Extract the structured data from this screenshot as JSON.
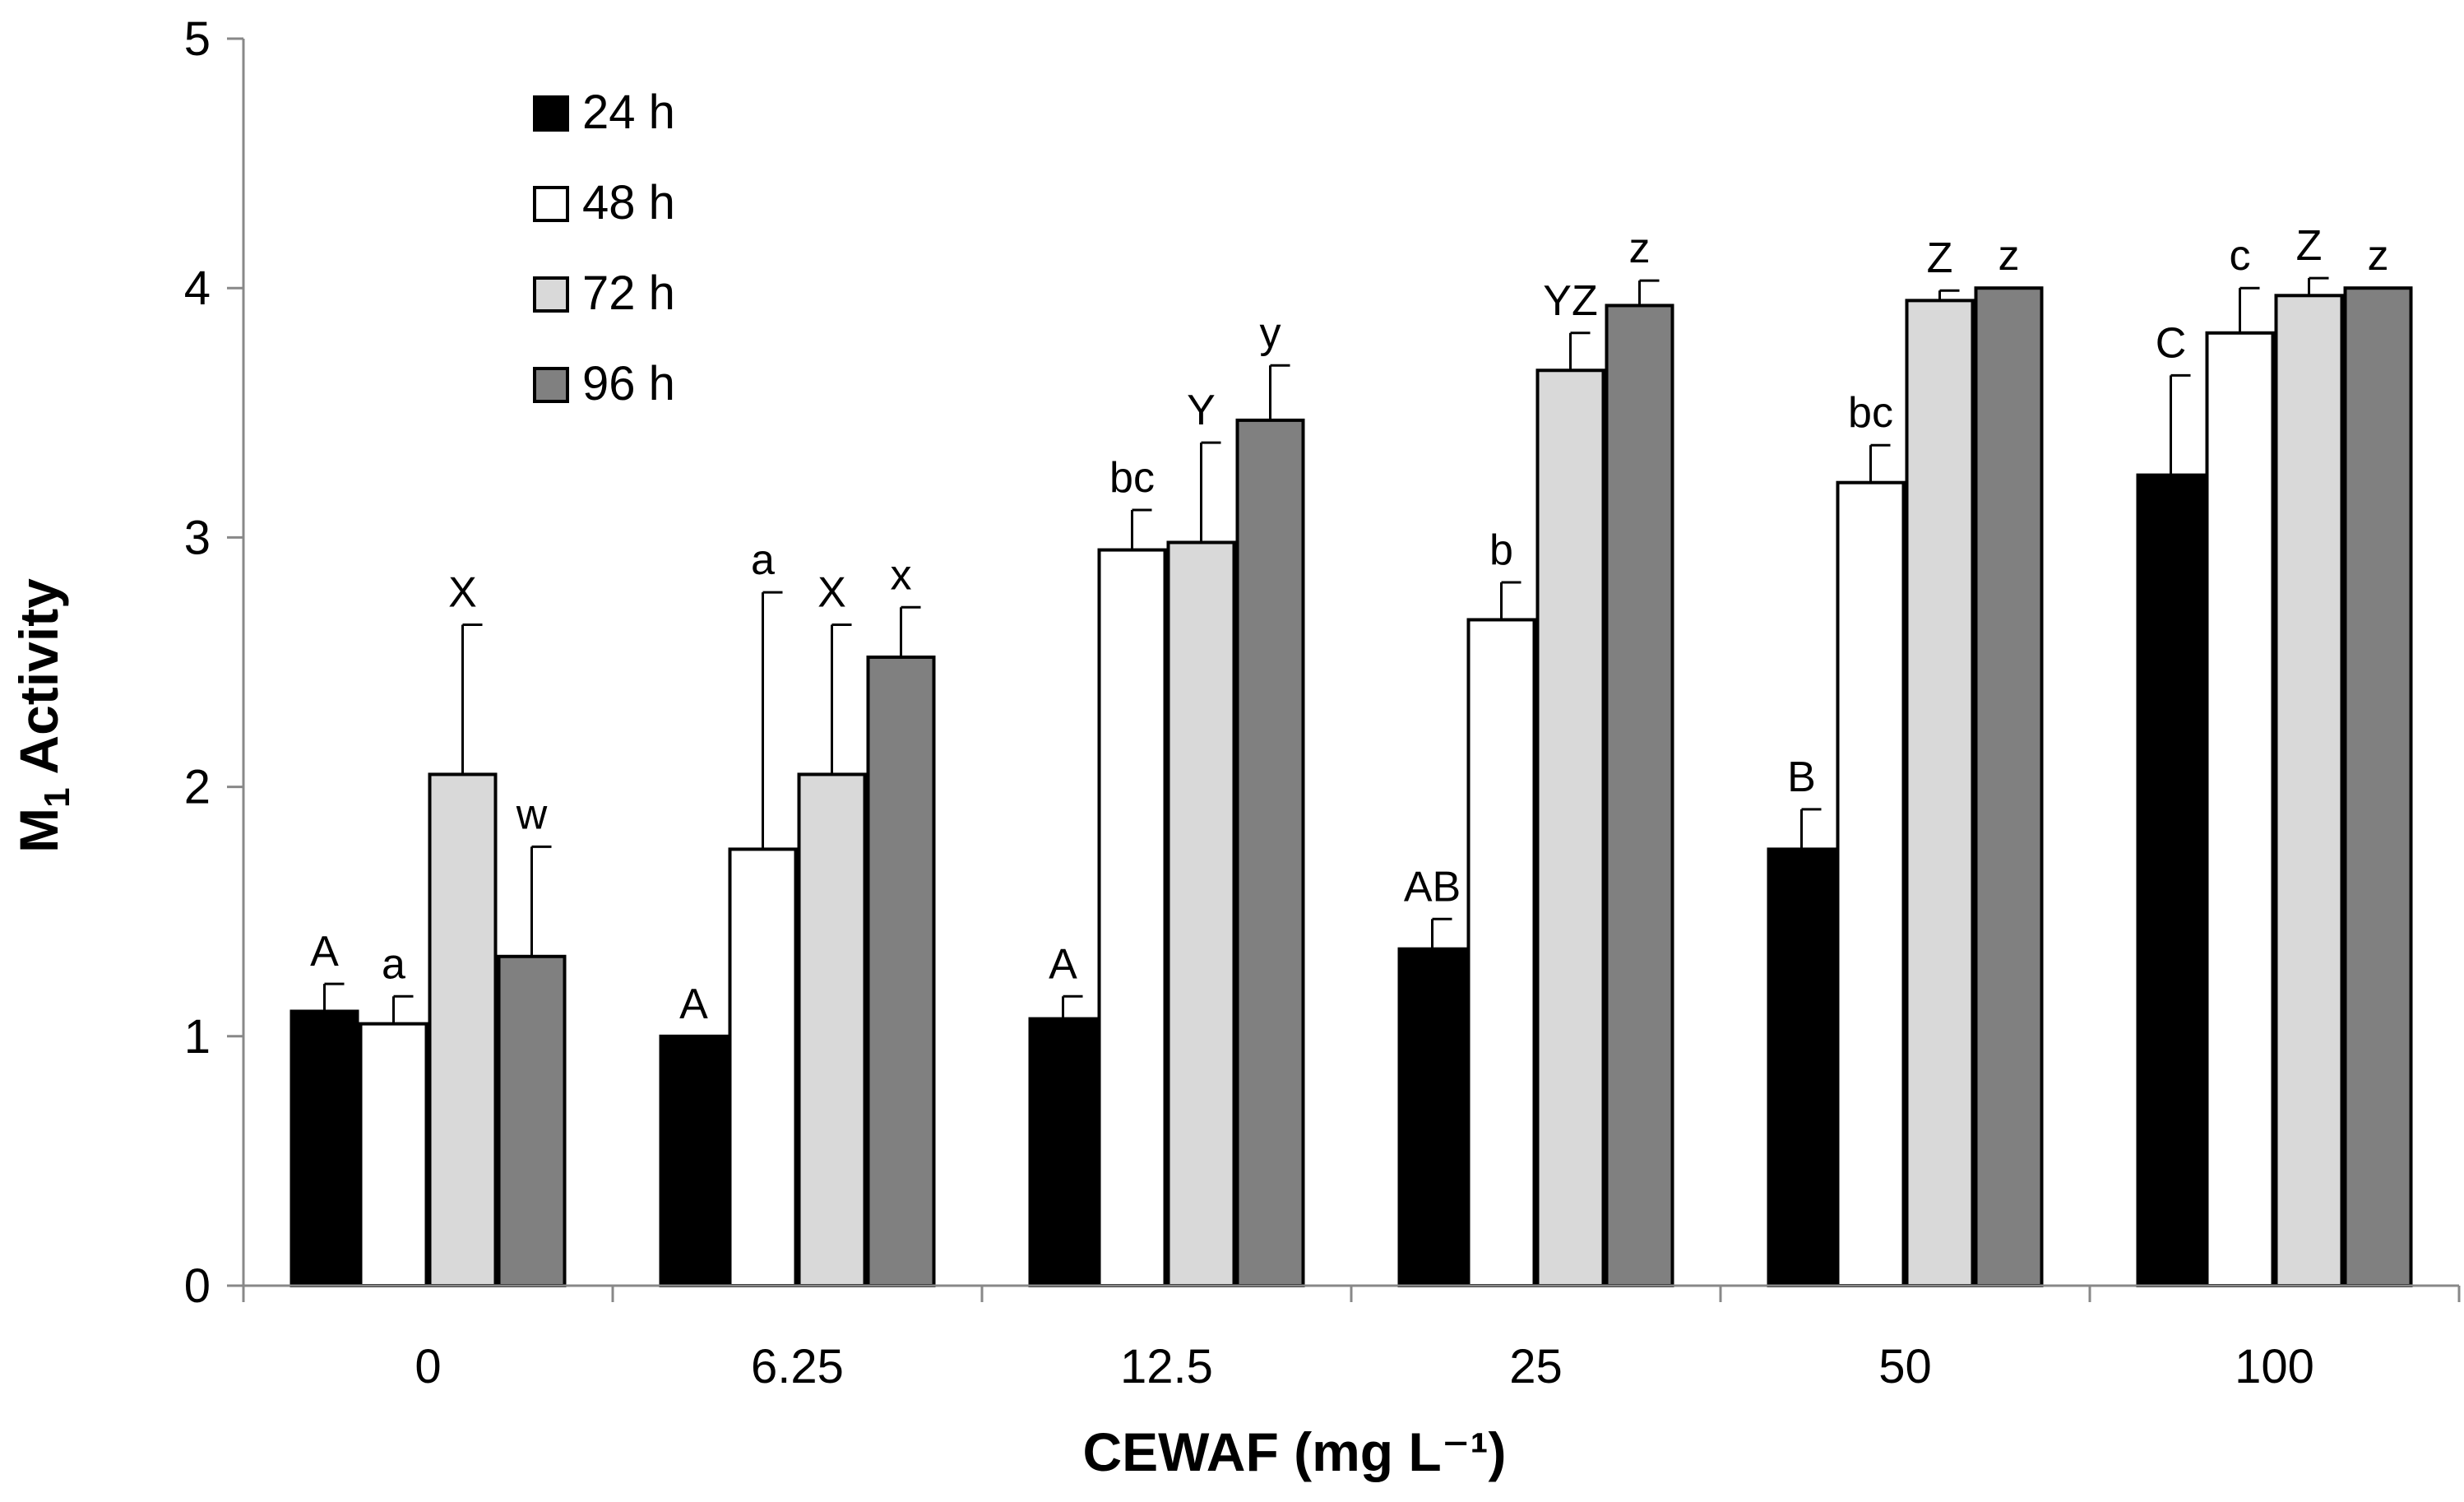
{
  "chart_data": {
    "type": "bar",
    "title": "",
    "xlabel": "CEWAF (mg L⁻¹)",
    "ylabel_main": "M",
    "ylabel_sub": "1",
    "ylabel_rest": " Activity",
    "ylim": [
      0,
      5
    ],
    "yticks": [
      0,
      1,
      2,
      3,
      4,
      5
    ],
    "categories": [
      "0",
      "6.25",
      "12.5",
      "25",
      "50",
      "100"
    ],
    "legend_position": "top-left",
    "series": [
      {
        "name": "24 h",
        "color": "#000000",
        "values": [
          1.1,
          1.0,
          1.07,
          1.35,
          1.75,
          3.25
        ],
        "errors": [
          0.11,
          0.0,
          0.09,
          0.12,
          0.16,
          0.4
        ],
        "labels": [
          "A",
          "A",
          "A",
          "AB",
          "B",
          "C"
        ]
      },
      {
        "name": "48 h",
        "color": "#ffffff",
        "values": [
          1.05,
          1.75,
          2.95,
          2.67,
          3.22,
          3.82
        ],
        "errors": [
          0.11,
          1.03,
          0.16,
          0.15,
          0.15,
          0.18
        ],
        "labels": [
          "a",
          "a",
          "bc",
          "b",
          "bc",
          "c"
        ]
      },
      {
        "name": "72 h",
        "color": "#d9d9d9",
        "values": [
          2.05,
          2.05,
          2.98,
          3.67,
          3.95,
          3.97
        ],
        "errors": [
          0.6,
          0.6,
          0.4,
          0.15,
          0.04,
          0.07
        ],
        "labels": [
          "X",
          "X",
          "Y",
          "YZ",
          "Z",
          "Z"
        ]
      },
      {
        "name": "96 h",
        "color": "#808080",
        "values": [
          1.32,
          2.52,
          3.47,
          3.93,
          4.0,
          4.0
        ],
        "errors": [
          0.44,
          0.2,
          0.22,
          0.1,
          0.0,
          0.0
        ],
        "labels": [
          "w",
          "x",
          "y",
          "z",
          "z",
          "z"
        ]
      }
    ]
  }
}
